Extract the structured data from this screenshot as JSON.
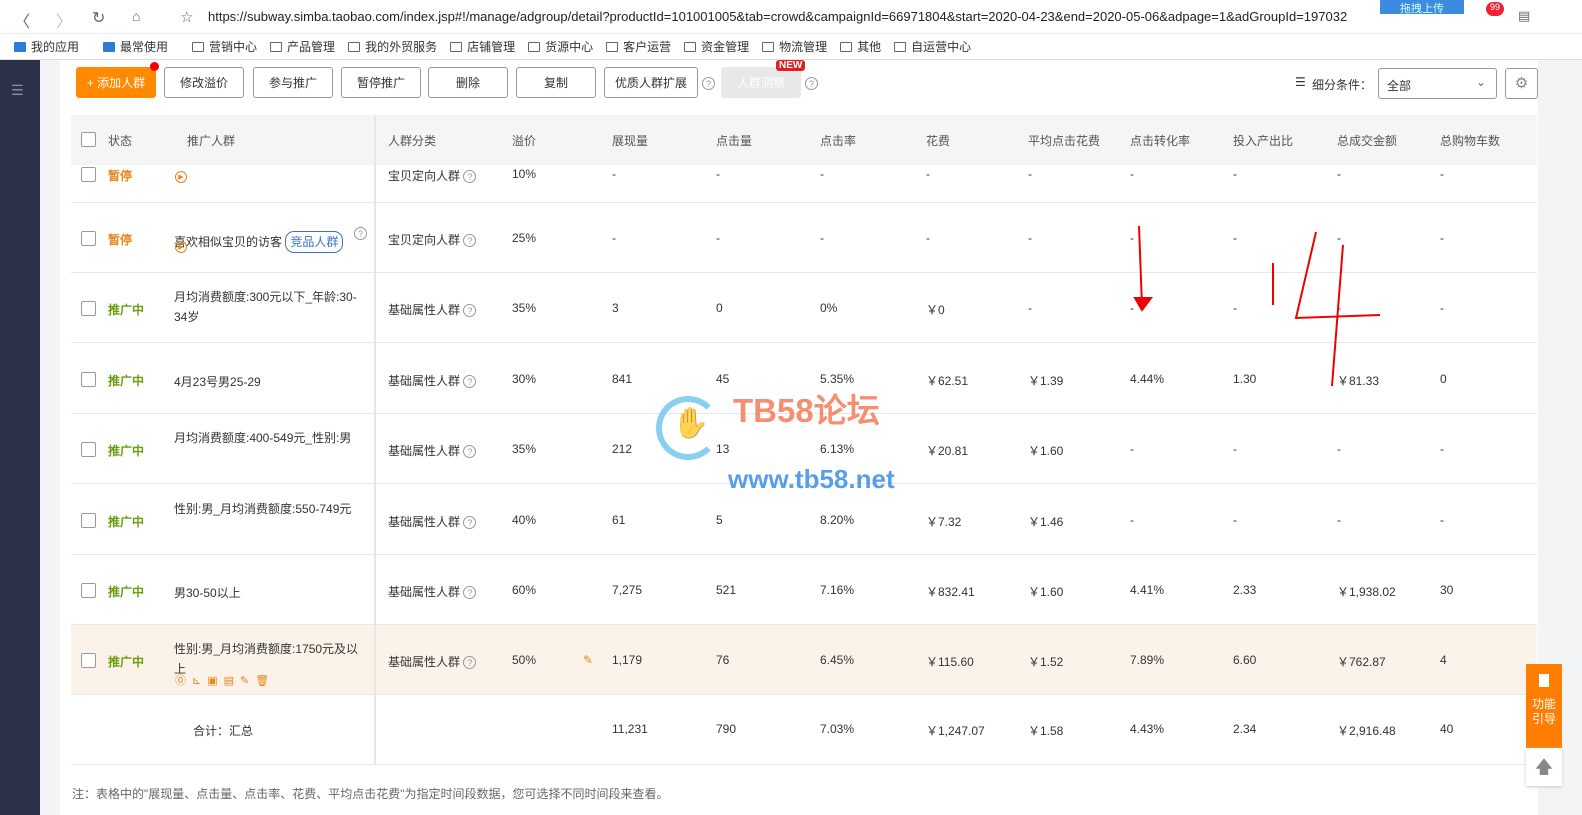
{
  "browser": {
    "url": "https://subway.simba.taobao.com/index.jsp#!/manage/adgroup/detail?productId=101001005&tab=crowd&campaignId=66971804&start=2020-04-23&end=2020-05-06&adpage=1&adGroupId=197032",
    "upload_label": "拖拽上传",
    "badge": "99"
  },
  "bookmarks": [
    "我的应用",
    "最常使用",
    "营销中心",
    "产品管理",
    "我的外贸服务",
    "店铺管理",
    "货源中心",
    "客户运营",
    "资金管理",
    "物流管理",
    "其他",
    "自运营中心"
  ],
  "toolbar": {
    "add": "+ 添加人群",
    "edit_premium": "修改溢价",
    "join": "参与推广",
    "pause": "暂停推广",
    "delete": "删除",
    "copy": "复制",
    "expand": "优质人群扩展",
    "insight": "人群洞察",
    "new_badge": "NEW",
    "filter_label": "细分条件：",
    "filter_value": "全部"
  },
  "columns": [
    "状态",
    "推广人群",
    "人群分类",
    "溢价",
    "展现量",
    "点击量",
    "点击率",
    "花费",
    "平均点击花费",
    "点击转化率",
    "投入产出比",
    "总成交金额",
    "总购物车数"
  ],
  "rows": [
    {
      "status": "暂停",
      "name": "",
      "category": "宝贝定向人群",
      "premium": "10%",
      "vals": [
        "-",
        "-",
        "-",
        "-",
        "-",
        "-",
        "-",
        "-",
        "-"
      ],
      "paused": true
    },
    {
      "status": "暂停",
      "name": "喜欢相似宝贝的访客",
      "tag": "竞品人群",
      "category": "宝贝定向人群",
      "premium": "25%",
      "vals": [
        "-",
        "-",
        "-",
        "-",
        "-",
        "-",
        "-",
        "-",
        "-"
      ],
      "paused": true
    },
    {
      "status": "推广中",
      "name": "月均消费额度:300元以下_年龄:30-34岁",
      "category": "基础属性人群",
      "premium": "35%",
      "vals": [
        "3",
        "0",
        "0%",
        "￥0",
        "-",
        "-",
        "-",
        "-",
        "-"
      ]
    },
    {
      "status": "推广中",
      "name": "4月23号男25-29",
      "category": "基础属性人群",
      "premium": "30%",
      "vals": [
        "841",
        "45",
        "5.35%",
        "￥62.51",
        "￥1.39",
        "4.44%",
        "1.30",
        "￥81.33",
        "0"
      ]
    },
    {
      "status": "推广中",
      "name": "月均消费额度:400-549元_性别:男",
      "category": "基础属性人群",
      "premium": "35%",
      "vals": [
        "212",
        "13",
        "6.13%",
        "￥20.81",
        "￥1.60",
        "-",
        "-",
        "-",
        "-"
      ]
    },
    {
      "status": "推广中",
      "name": "性别:男_月均消费额度:550-749元",
      "category": "基础属性人群",
      "premium": "40%",
      "vals": [
        "61",
        "5",
        "8.20%",
        "￥7.32",
        "￥1.46",
        "-",
        "-",
        "-",
        "-"
      ]
    },
    {
      "status": "推广中",
      "name": "男30-50以上",
      "category": "基础属性人群",
      "premium": "60%",
      "vals": [
        "7,275",
        "521",
        "7.16%",
        "￥832.41",
        "￥1.60",
        "4.41%",
        "2.33",
        "￥1,938.02",
        "30"
      ]
    },
    {
      "status": "推广中",
      "name": "性别:男_月均消费额度:1750元及以上",
      "category": "基础属性人群",
      "premium": "50%",
      "vals": [
        "1,179",
        "76",
        "6.45%",
        "￥115.60",
        "￥1.52",
        "7.89%",
        "6.60",
        "￥762.87",
        "4"
      ],
      "hover": true
    }
  ],
  "total": {
    "label": "合计：汇总",
    "vals": [
      "11,231",
      "790",
      "7.03%",
      "￥1,247.07",
      "￥1.58",
      "4.43%",
      "2.34",
      "￥2,916.48",
      "40"
    ]
  },
  "note": "注：表格中的\"展现量、点击量、点击率、花费、平均点击花费\"为指定时间段数据，您可选择不同时间段来查看。",
  "float": {
    "guide": "功能引导"
  },
  "watermark": {
    "title": "TB58论坛",
    "url": "www.tb58.net"
  },
  "annotation": "14",
  "colors": {
    "accent": "#ff8a00",
    "active": "#6a9e0f",
    "paused": "#e6861b",
    "sidebar": "#2b3247"
  }
}
